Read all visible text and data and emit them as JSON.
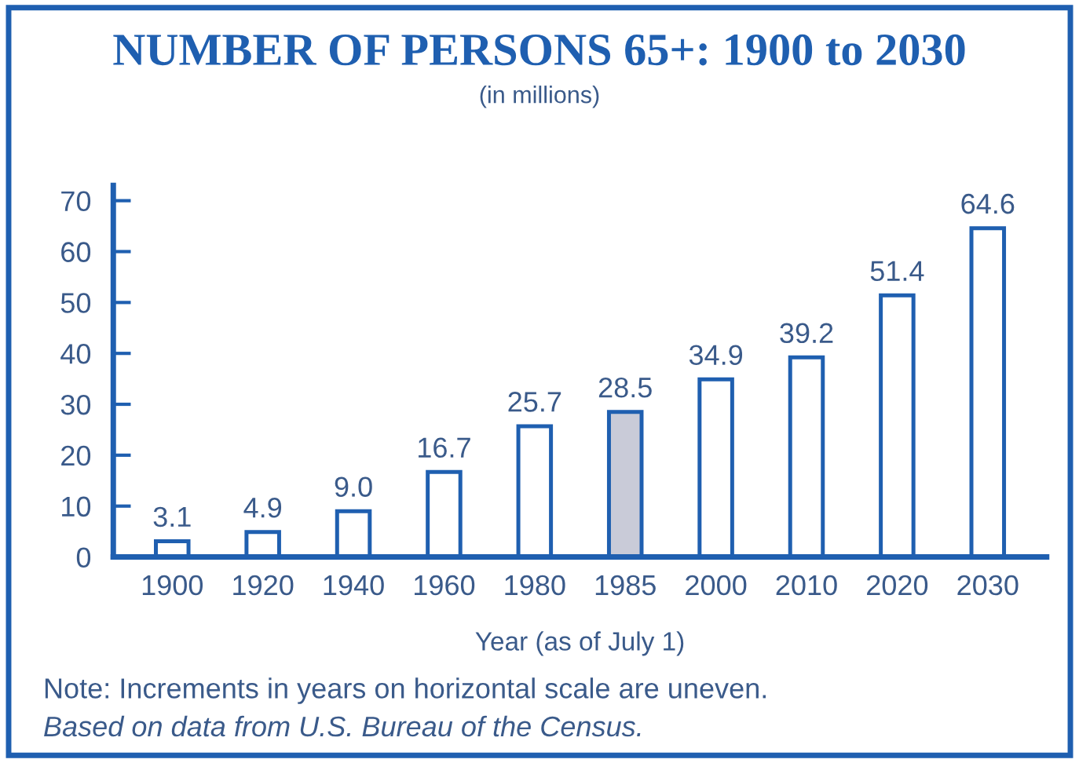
{
  "chart_data": {
    "type": "bar",
    "title": "NUMBER OF PERSONS 65+: 1900 to 2030",
    "subtitle": "(in millions)",
    "xlabel": "Year (as of July 1)",
    "categories": [
      "1900",
      "1920",
      "1940",
      "1960",
      "1980",
      "1985",
      "2000",
      "2010",
      "2020",
      "2030"
    ],
    "values": [
      3.1,
      4.9,
      9.0,
      16.7,
      25.7,
      28.5,
      34.9,
      39.2,
      51.4,
      64.6
    ],
    "value_labels": [
      "3.1",
      "4.9",
      "9.0",
      "16.7",
      "25.7",
      "28.5",
      "34.9",
      "39.2",
      "51.4",
      "64.6"
    ],
    "colors": [
      "#ffffff",
      "#ffffff",
      "#ffffff",
      "#ffffff",
      "#ffffff",
      "#c9cbd8",
      "#ffffff",
      "#ffffff",
      "#ffffff",
      "#ffffff"
    ],
    "ylim": [
      0,
      73
    ],
    "yticks": [
      0,
      10,
      20,
      30,
      40,
      50,
      60,
      70
    ],
    "grid": false,
    "annotations": [
      "Note: Increments in years on horizontal scale are uneven.",
      "Based on data from U.S. Bureau of the Census."
    ]
  }
}
